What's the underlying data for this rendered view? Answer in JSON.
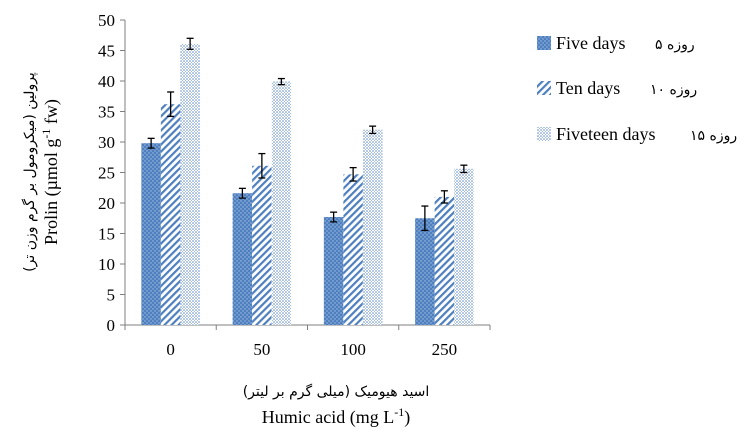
{
  "chart_data": {
    "type": "bar",
    "categories": [
      "0",
      "50",
      "100",
      "250"
    ],
    "series": [
      {
        "name": "Five days",
        "name_fa": "۵ روزه",
        "values": [
          29.8,
          21.6,
          17.7,
          17.5
        ],
        "errors": [
          0.8,
          0.8,
          0.8,
          2.0
        ],
        "pattern": "dots",
        "color": "#4e7fbf"
      },
      {
        "name": "Ten days",
        "name_fa": "۱۰ روزه",
        "values": [
          36.2,
          26.1,
          24.7,
          21.0
        ],
        "errors": [
          2.0,
          2.0,
          1.1,
          1.0
        ],
        "pattern": "diagonal",
        "color": "#4e7fbf"
      },
      {
        "name": "Fiveteen days",
        "name_fa": "۱۵ روزه",
        "values": [
          46.1,
          39.9,
          32.0,
          25.6
        ],
        "errors": [
          0.9,
          0.5,
          0.6,
          0.6
        ],
        "pattern": "fine-dots",
        "color": "#4e7fbf"
      }
    ],
    "ylim": [
      0,
      50
    ],
    "yticks": [
      "0",
      "5",
      "10",
      "15",
      "20",
      "25",
      "30",
      "35",
      "40",
      "45",
      "50"
    ],
    "ylabel_fa": "پرولین (میکرومول بر گرم وزن تر)",
    "ylabel": "Prolin (µmol g-1 fw)",
    "ylabel_main": "Prolin (µmol g",
    "ylabel_sup": "-1",
    "ylabel_tail": " fw)",
    "xlabel_fa": "اسید هیومیک (میلی گرم بر لیتر)",
    "xlabel": "Humic acid (mg L-1)",
    "xlabel_main": "Humic acid (mg L",
    "xlabel_sup": "-1",
    "xlabel_tail": ")",
    "grid": false,
    "legend_position": "right"
  }
}
